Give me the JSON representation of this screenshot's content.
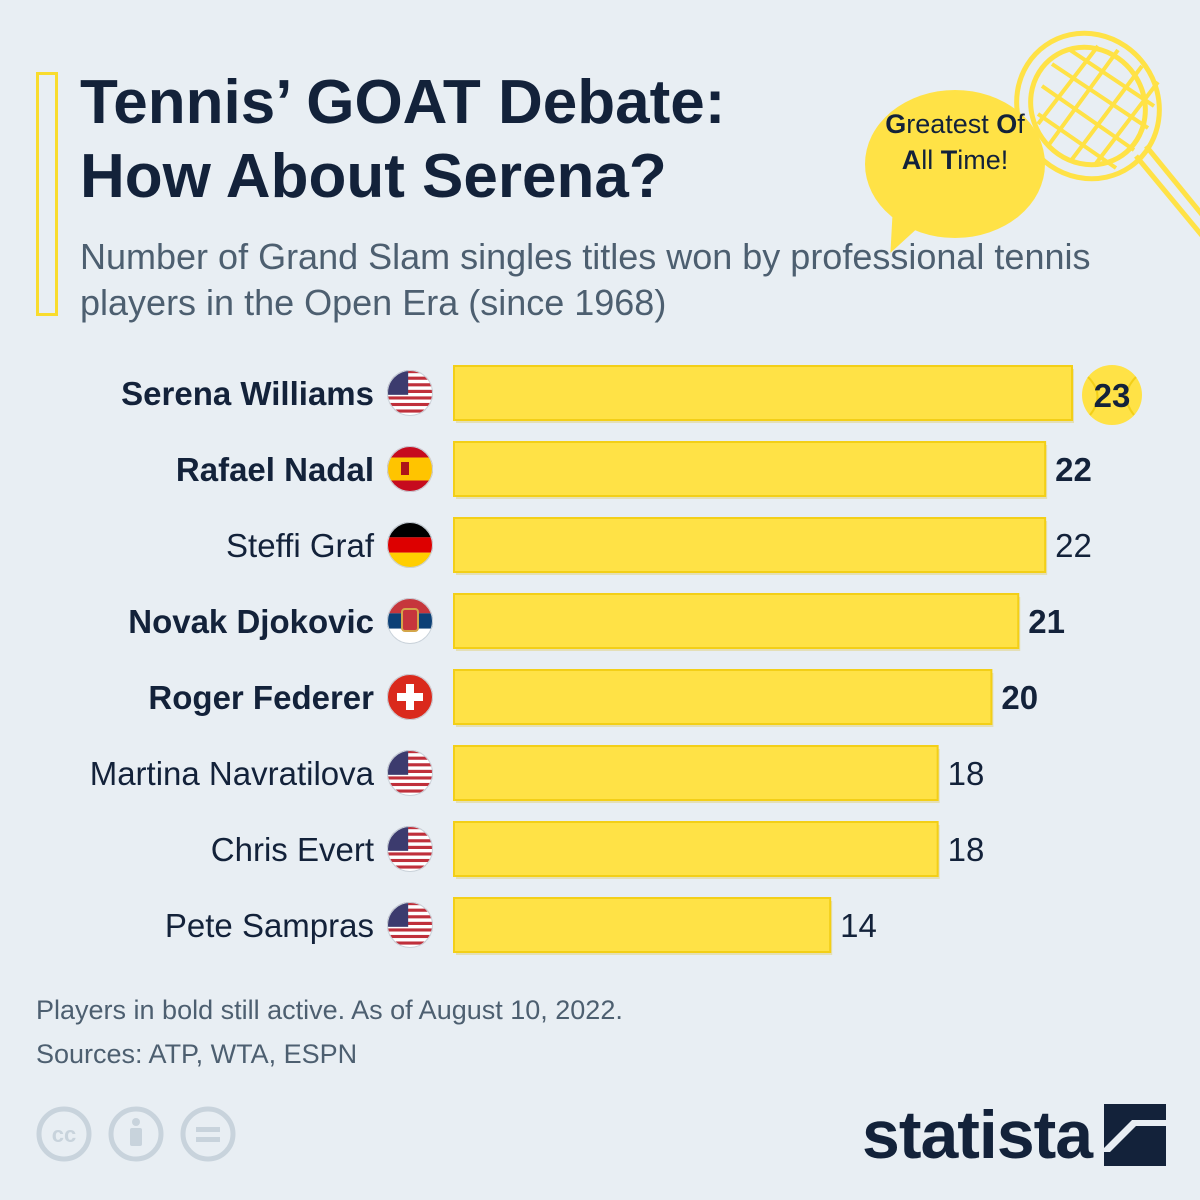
{
  "title": "Tennis’ GOAT Debate: How About Serena?",
  "subtitle": "Number of Grand Slam singles titles won by professional tennis players in the Open Era (since 1968)",
  "bubble": {
    "parts": [
      {
        "bold": "G",
        "rest": "reatest "
      },
      {
        "bold": "O",
        "rest": "f"
      },
      {
        "bold": "A",
        "rest": "ll "
      },
      {
        "bold": "T",
        "rest": "ime!"
      }
    ]
  },
  "chart_data": {
    "type": "bar",
    "orientation": "horizontal",
    "categories": [
      "Serena Williams",
      "Rafael Nadal",
      "Steffi Graf",
      "Novak Djokovic",
      "Roger Federer",
      "Martina Navratilova",
      "Chris Evert",
      "Pete Sampras"
    ],
    "values": [
      23,
      22,
      22,
      21,
      20,
      18,
      18,
      14
    ],
    "flags": [
      "us",
      "es",
      "de",
      "rs",
      "ch",
      "us",
      "us",
      "us"
    ],
    "bold": [
      true,
      true,
      false,
      true,
      true,
      false,
      false,
      false
    ],
    "highlight_index": 0,
    "bar_color": "#ffe246",
    "xlim": [
      0,
      23
    ],
    "grid": false,
    "legend": "none"
  },
  "footer": {
    "note": "Players in bold still active. As of August 10, 2022.",
    "sources": "Sources: ATP, WTA, ESPN"
  },
  "logo": "statista",
  "colors": {
    "text": "#13223a",
    "muted": "#4d5f70",
    "accent": "#ffe246",
    "background": "#e8eef3"
  }
}
